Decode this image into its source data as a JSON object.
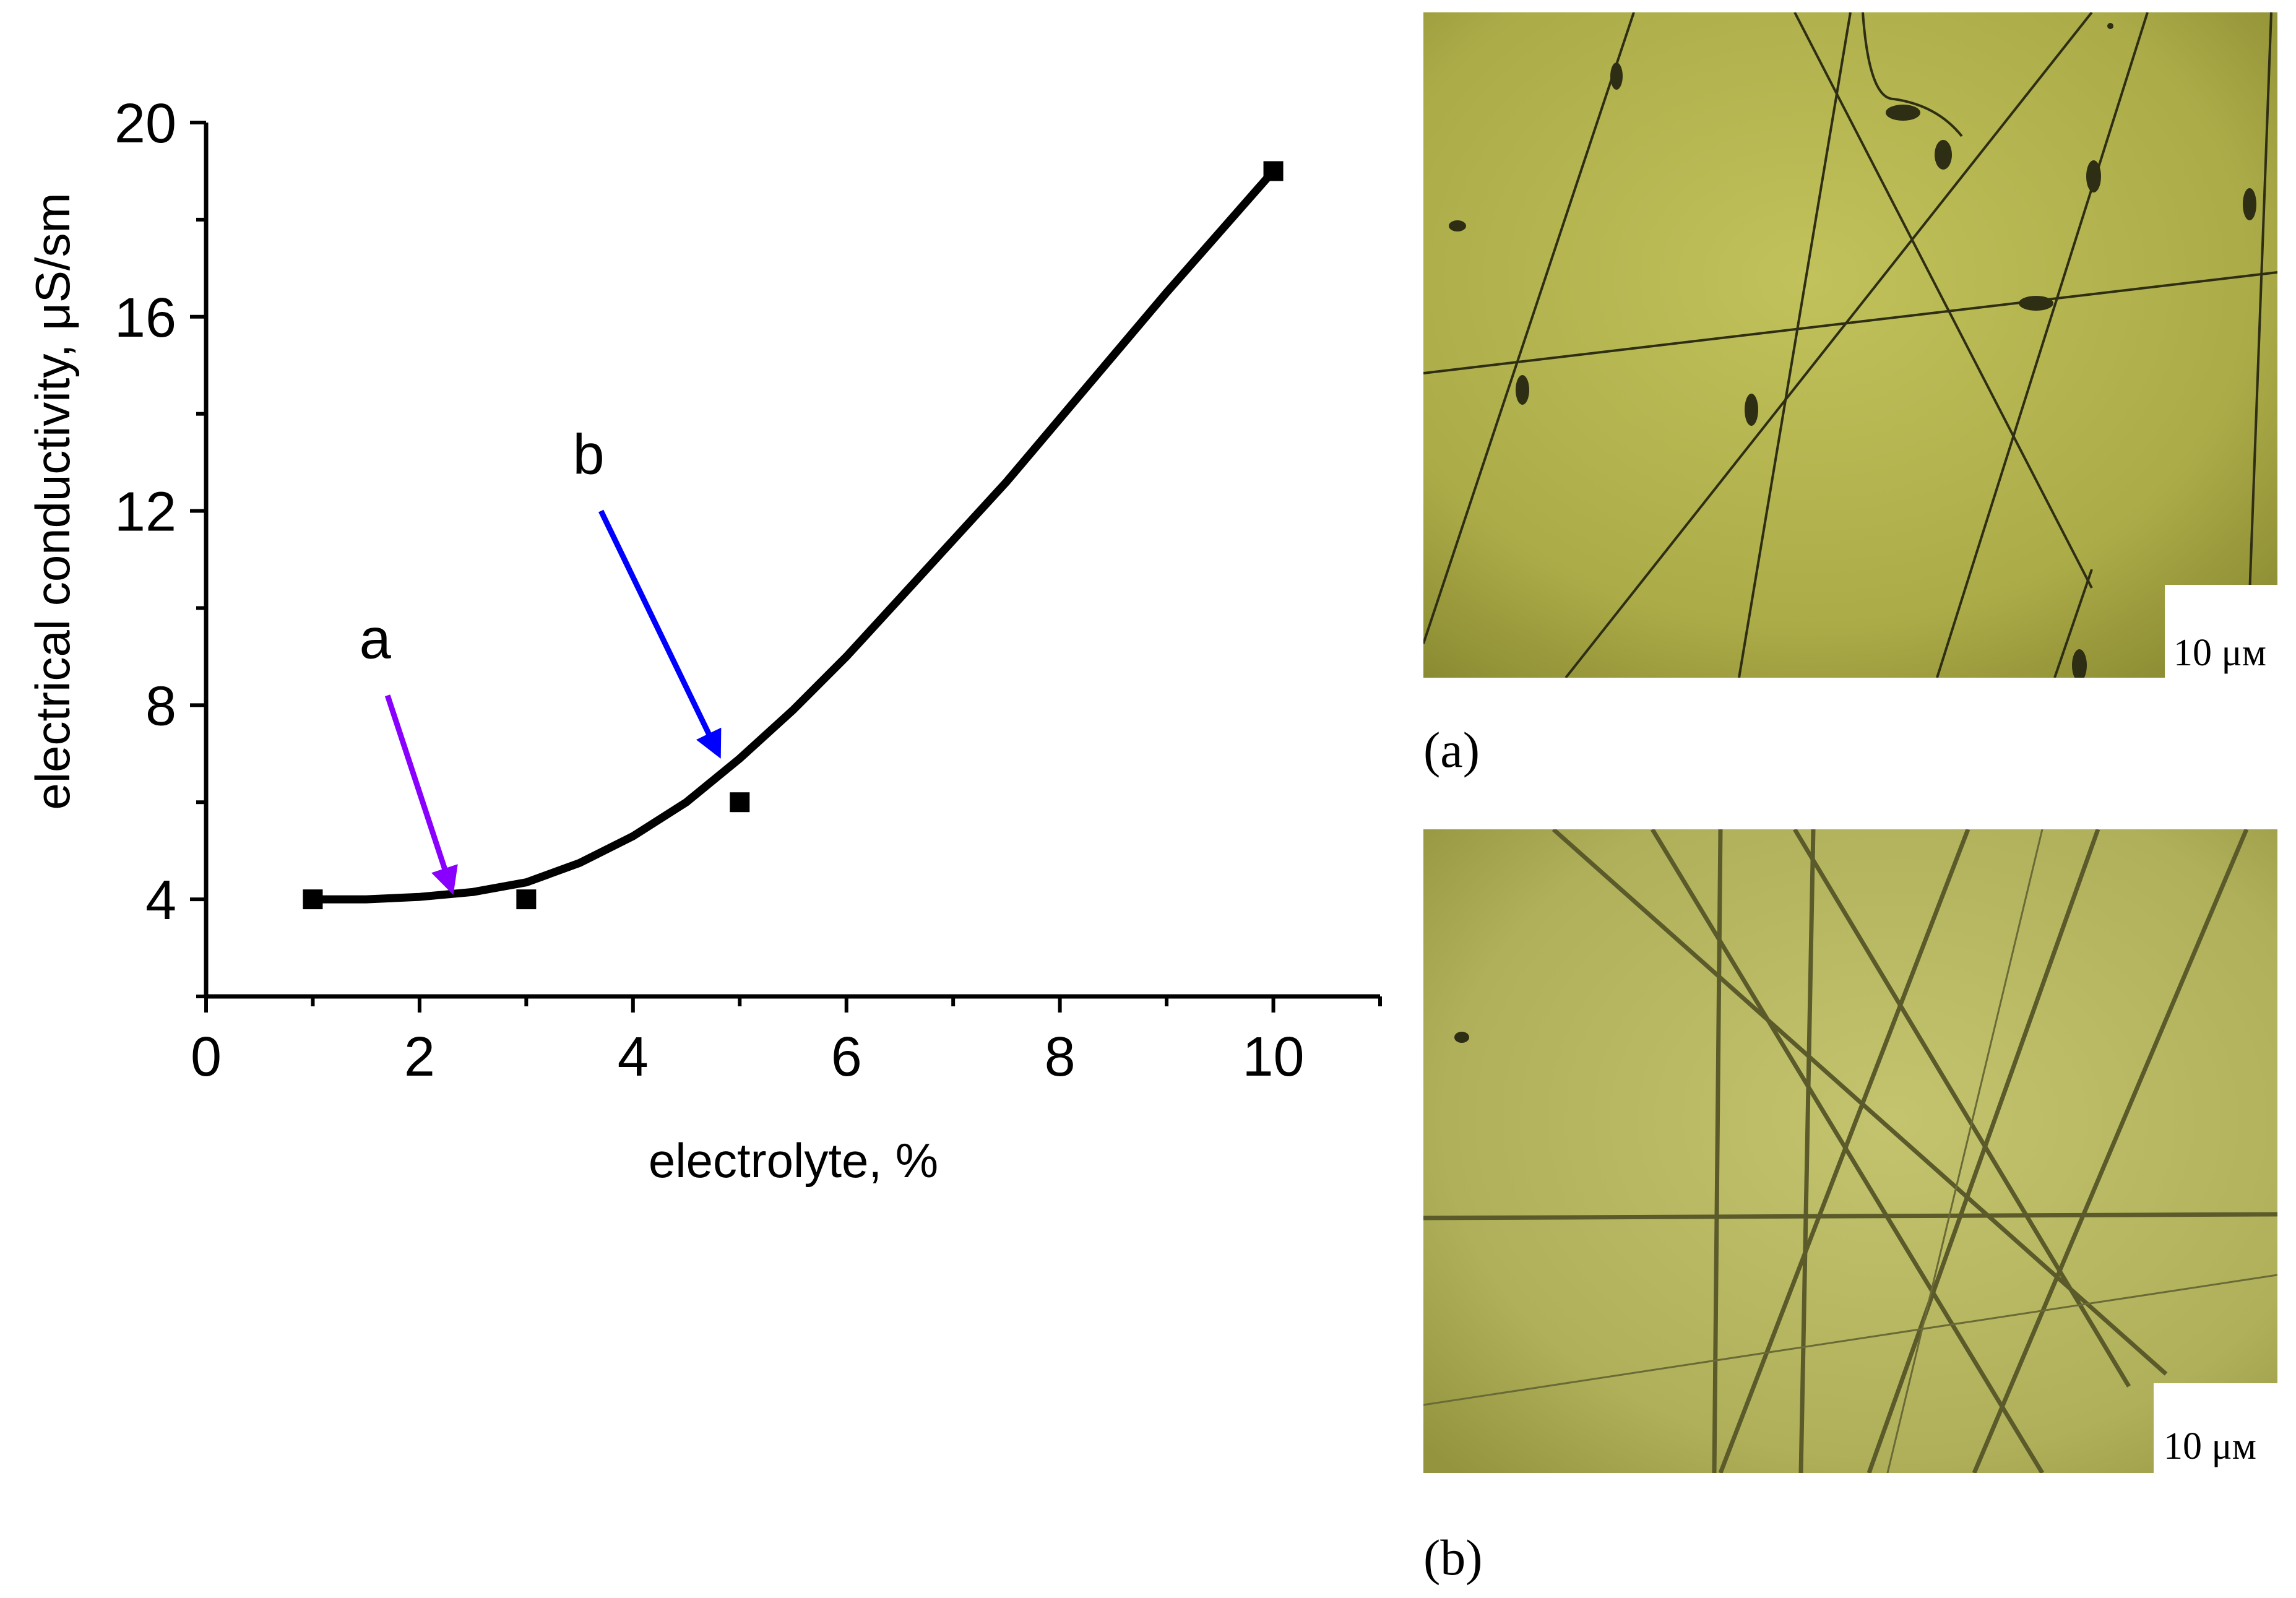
{
  "chart_data": {
    "type": "scatter",
    "xlabel": "electrolyte, %",
    "ylabel": "electrical conductivity, μS/sm",
    "xlim": [
      0,
      11
    ],
    "ylim": [
      2,
      20
    ],
    "x_ticks": [
      0,
      2,
      4,
      6,
      8,
      10
    ],
    "y_ticks": [
      4,
      8,
      12,
      16,
      20
    ],
    "series": [
      {
        "values": [
          {
            "x": 1,
            "y": 4
          },
          {
            "x": 3,
            "y": 4
          },
          {
            "x": 5,
            "y": 6
          },
          {
            "x": 10,
            "y": 19
          }
        ]
      }
    ],
    "fit_curve": [
      {
        "x": 1.0,
        "y": 4.0
      },
      {
        "x": 1.5,
        "y": 4.0
      },
      {
        "x": 2.0,
        "y": 4.05
      },
      {
        "x": 2.5,
        "y": 4.15
      },
      {
        "x": 3.0,
        "y": 4.35
      },
      {
        "x": 3.5,
        "y": 4.75
      },
      {
        "x": 4.0,
        "y": 5.3
      },
      {
        "x": 4.5,
        "y": 6.0
      },
      {
        "x": 5.0,
        "y": 6.9
      },
      {
        "x": 5.5,
        "y": 7.9
      },
      {
        "x": 6.0,
        "y": 9.0
      },
      {
        "x": 6.5,
        "y": 10.2
      },
      {
        "x": 7.0,
        "y": 11.4
      },
      {
        "x": 7.5,
        "y": 12.6
      },
      {
        "x": 8.0,
        "y": 13.9
      },
      {
        "x": 8.5,
        "y": 15.2
      },
      {
        "x": 9.0,
        "y": 16.5
      },
      {
        "x": 9.5,
        "y": 17.75
      },
      {
        "x": 10.0,
        "y": 19.0
      }
    ],
    "annotations": [
      {
        "label": "a",
        "color": "#8a00ff",
        "from": {
          "x": 1.7,
          "y": 8.2
        },
        "to": {
          "x": 2.3,
          "y": 4.2
        }
      },
      {
        "label": "b",
        "color": "#0000ff",
        "from": {
          "x": 3.7,
          "y": 12.0
        },
        "to": {
          "x": 4.8,
          "y": 7.0
        }
      }
    ],
    "grid": false,
    "legend": "none"
  },
  "images": [
    {
      "panel_label": "(a)",
      "scale_bar_label": "10 μм",
      "background": "#b4b44e"
    },
    {
      "panel_label": "(b)",
      "scale_bar_label": "10 μм",
      "background": "#b8b85c"
    }
  ]
}
